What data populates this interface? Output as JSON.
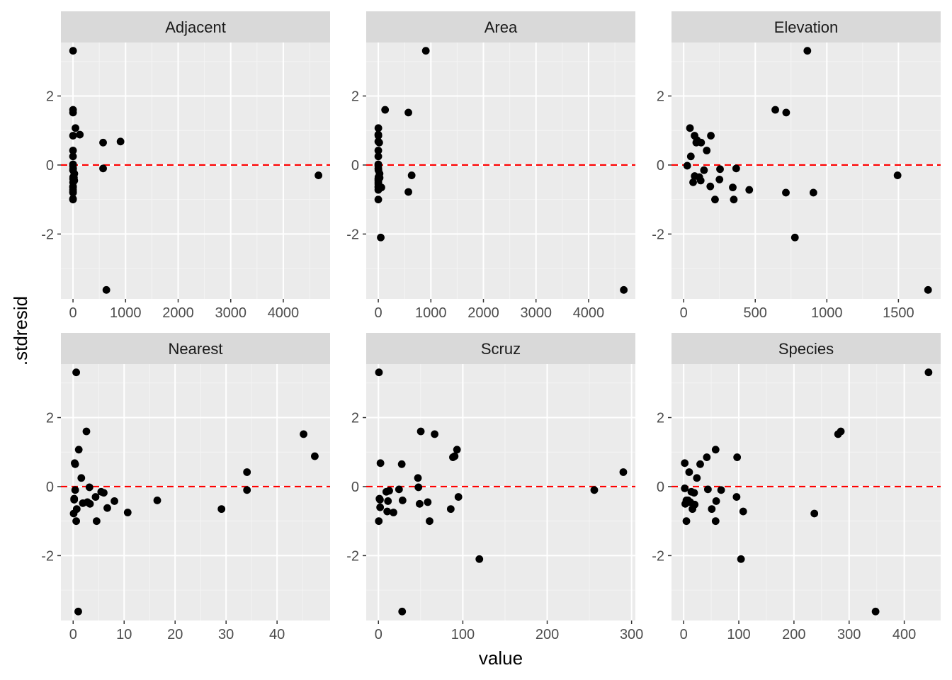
{
  "figure": {
    "xlabel": "value",
    "ylabel": ".stdresid"
  },
  "colors": {
    "panel_background": "#ebebeb",
    "strip_background": "#d9d9d9",
    "grid_major": "#ffffff",
    "grid_minor": "#f4f4f4",
    "point": "#000000",
    "reference_line": "#ff0000"
  },
  "chart_data": [
    {
      "type": "scatter",
      "title": "Adjacent",
      "xlim": [
        -230,
        4890
      ],
      "ylim": [
        -3.88,
        3.55
      ],
      "xticks": [
        0,
        1000,
        2000,
        3000,
        4000
      ],
      "xminor": [
        500,
        1500,
        2500,
        3500,
        4500
      ],
      "yticks": [
        -2,
        0,
        2
      ],
      "yminor": [
        -3,
        -1,
        1,
        3
      ],
      "hline": 0,
      "x": [
        1.24,
        0.57,
        0.78,
        0.18,
        0.21,
        0.1,
        0.52,
        0.05,
        2.33,
        0.03,
        25.09,
        572.33,
        2.85,
        17.35,
        903.82,
        24.08,
        1.84,
        572.33,
        0.57,
        4669.32,
        634.49,
        0.21,
        129.49,
        0.1,
        0.05,
        0.01,
        1.84,
        46.77,
        0.78,
        0.01
      ],
      "y": [
        3.31,
        1.6,
        1.52,
        0.85,
        0.42,
        0.25,
        0.02,
        -0.02,
        -0.1,
        -0.15,
        -0.25,
        0.65,
        -0.35,
        -0.37,
        0.68,
        -0.45,
        -0.5,
        -0.1,
        -0.62,
        -0.3,
        -3.62,
        -0.65,
        0.88,
        -0.72,
        -0.78,
        -1.0,
        -0.4,
        1.07,
        -0.8,
        -0.98
      ]
    },
    {
      "type": "scatter",
      "title": "Area",
      "xlim": [
        -230,
        4890
      ],
      "ylim": [
        -3.88,
        3.55
      ],
      "xticks": [
        0,
        1000,
        2000,
        3000,
        4000
      ],
      "xminor": [
        500,
        1500,
        2500,
        3500,
        4500
      ],
      "yticks": [
        -2,
        0,
        2
      ],
      "yminor": [
        -3,
        -1,
        1,
        3
      ],
      "hline": 0,
      "x": [
        903.82,
        129.49,
        572.33,
        1.84,
        0.21,
        0.1,
        0.05,
        0.03,
        0.52,
        2.33,
        24.08,
        17.35,
        634.49,
        2.85,
        25.09,
        572.33,
        0.18,
        0.57,
        4669.32,
        0.78,
        1.24,
        46.77,
        0.01,
        0.1,
        0.57,
        0.78,
        0.01,
        58.27,
        0.05,
        0.21
      ],
      "y": [
        3.31,
        1.6,
        1.52,
        0.85,
        0.42,
        0.25,
        0.02,
        -0.02,
        -0.1,
        -0.15,
        -0.25,
        0.65,
        -0.3,
        -0.35,
        -0.37,
        -0.78,
        -0.45,
        -0.5,
        -3.62,
        -0.62,
        1.07,
        -2.1,
        0.88,
        -0.72,
        -0.65,
        -0.55,
        -1.0,
        -0.65,
        -0.4,
        0.68
      ]
    },
    {
      "type": "scatter",
      "title": "Elevation",
      "xlim": [
        -85,
        1795
      ],
      "ylim": [
        -3.88,
        3.55
      ],
      "xticks": [
        0,
        500,
        1000,
        1500
      ],
      "xminor": [
        250,
        750,
        1250
      ],
      "yticks": [
        -2,
        0,
        2
      ],
      "yminor": [
        -3,
        -1,
        1,
        3
      ],
      "hline": 0,
      "x": [
        864,
        640,
        716,
        76,
        50,
        88,
        367,
        25,
        186,
        254,
        1494,
        122,
        142,
        44,
        109,
        250,
        714,
        1707,
        77,
        777,
        906,
        343,
        350,
        458,
        219,
        161,
        93,
        119,
        190,
        66
      ],
      "y": [
        3.31,
        1.6,
        1.52,
        0.85,
        0.25,
        0.65,
        -0.1,
        -0.02,
        -0.62,
        -0.12,
        -0.3,
        0.65,
        -0.15,
        1.07,
        -0.35,
        -0.42,
        -0.8,
        -3.62,
        -0.32,
        -2.1,
        -0.8,
        -0.65,
        -1.0,
        -0.72,
        -1.0,
        0.42,
        0.72,
        -0.45,
        0.85,
        -0.5
      ]
    },
    {
      "type": "scatter",
      "title": "Nearest",
      "xlim": [
        -2.4,
        50.4
      ],
      "ylim": [
        -3.88,
        3.55
      ],
      "xticks": [
        0,
        10,
        20,
        30,
        40
      ],
      "xminor": [
        5,
        15,
        25,
        35,
        45
      ],
      "yticks": [
        -2,
        0,
        2
      ],
      "yminor": [
        -3,
        -1,
        1,
        3
      ],
      "hline": 0,
      "x": [
        0.6,
        2.6,
        45.2,
        1.1,
        0.4,
        47.4,
        2.8,
        34.1,
        1.9,
        34.1,
        5.5,
        0.4,
        0.1,
        16.5,
        0.7,
        0.2,
        0.6,
        3.2,
        0.2,
        29.1,
        6.7,
        4.4,
        4.6,
        0.3,
        10.7,
        3.3,
        6.0,
        8.1,
        1.6,
        1.0
      ],
      "y": [
        3.31,
        1.6,
        1.52,
        1.07,
        0.65,
        0.88,
        -0.45,
        0.42,
        -0.48,
        -0.1,
        -0.15,
        -0.1,
        -0.78,
        -0.4,
        -0.65,
        -0.38,
        -1.0,
        -0.02,
        -0.35,
        -0.65,
        -0.62,
        -0.3,
        -1.0,
        0.68,
        -0.75,
        -0.5,
        -0.18,
        -0.42,
        0.25,
        -3.62
      ]
    },
    {
      "type": "scatter",
      "title": "Scruz",
      "xlim": [
        -14.5,
        304.5
      ],
      "ylim": [
        -3.88,
        3.55
      ],
      "xticks": [
        0,
        100,
        200,
        300
      ],
      "xminor": [
        50,
        150,
        250
      ],
      "yticks": [
        -2,
        0,
        2
      ],
      "yminor": [
        -3,
        -1,
        1,
        3
      ],
      "hline": 0,
      "x": [
        0.6,
        50.2,
        66.6,
        93.1,
        88.3,
        27.6,
        90.3,
        2.4,
        290.2,
        255.8,
        46.8,
        28.1,
        9.3,
        12.8,
        47.4,
        85.7,
        58.4,
        1.8,
        119.6,
        17.8,
        0.4,
        94.8,
        60.6,
        28.6,
        10.4,
        48.8,
        1.2,
        24.4,
        11.3,
        2.0
      ],
      "y": [
        3.31,
        1.6,
        1.52,
        1.07,
        0.85,
        0.65,
        0.88,
        0.68,
        0.42,
        -0.1,
        0.25,
        -3.62,
        -0.15,
        -0.12,
        -0.02,
        -0.65,
        -0.45,
        -0.38,
        -2.1,
        -0.75,
        -1.0,
        -0.3,
        -1.0,
        -0.4,
        -0.72,
        -0.5,
        -0.35,
        -0.08,
        -0.42,
        -0.6
      ]
    },
    {
      "type": "scatter",
      "title": "Species",
      "xlim": [
        -22,
        466
      ],
      "ylim": [
        -3.88,
        3.55
      ],
      "xticks": [
        0,
        100,
        200,
        300,
        400
      ],
      "xminor": [
        50,
        150,
        250,
        350
      ],
      "yticks": [
        -2,
        0,
        2
      ],
      "yminor": [
        -3,
        -1,
        1,
        3
      ],
      "hline": 0,
      "x": [
        444,
        285,
        280,
        58,
        97,
        42,
        30,
        2,
        10,
        24,
        44,
        5,
        104,
        237,
        348,
        51,
        14,
        58,
        108,
        2,
        96,
        59,
        68,
        3,
        8,
        12,
        19,
        5,
        16,
        20
      ],
      "y": [
        3.31,
        1.6,
        1.52,
        1.07,
        0.85,
        0.85,
        0.65,
        0.68,
        0.42,
        0.25,
        -0.08,
        -1.0,
        -2.1,
        -0.78,
        -3.62,
        -0.65,
        -0.15,
        -1.0,
        -0.72,
        -0.05,
        -0.3,
        -0.42,
        -0.1,
        -0.5,
        -0.4,
        -0.45,
        -0.18,
        -0.4,
        -0.65,
        -0.52
      ]
    }
  ]
}
